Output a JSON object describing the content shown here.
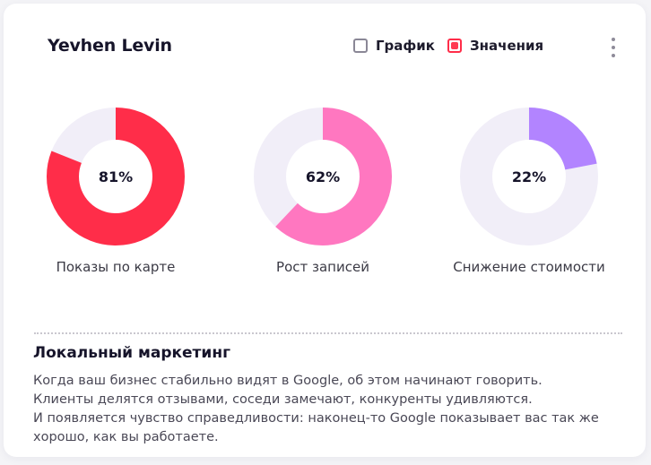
{
  "header": {
    "title": "Yevhen Levin",
    "toggles": [
      {
        "label": "График",
        "checked": false
      },
      {
        "label": "Значения",
        "checked": true
      }
    ]
  },
  "chart_data": {
    "type": "pie",
    "series": [
      {
        "name": "Показы по карте",
        "value": 81,
        "label": "81%",
        "color": "#ff2d49",
        "track": "#f1eef8"
      },
      {
        "name": "Рост записей",
        "value": 62,
        "label": "62%",
        "color": "#ff77c0",
        "track": "#f1eef8"
      },
      {
        "name": "Снижение стоимости",
        "value": 22,
        "label": "22%",
        "color": "#b284ff",
        "track": "#f1eef8"
      }
    ]
  },
  "section": {
    "title": "Локальный маркетинг",
    "lines": [
      "Когда ваш бизнес стабильно видят в Google, об этом начинают говорить.",
      "Клиенты делятся отзывами, соседи замечают, конкуренты удивляются.",
      "И появляется чувство справедливости: наконец-то Google показывает вас так же",
      "хорошо, как вы работаете."
    ]
  }
}
